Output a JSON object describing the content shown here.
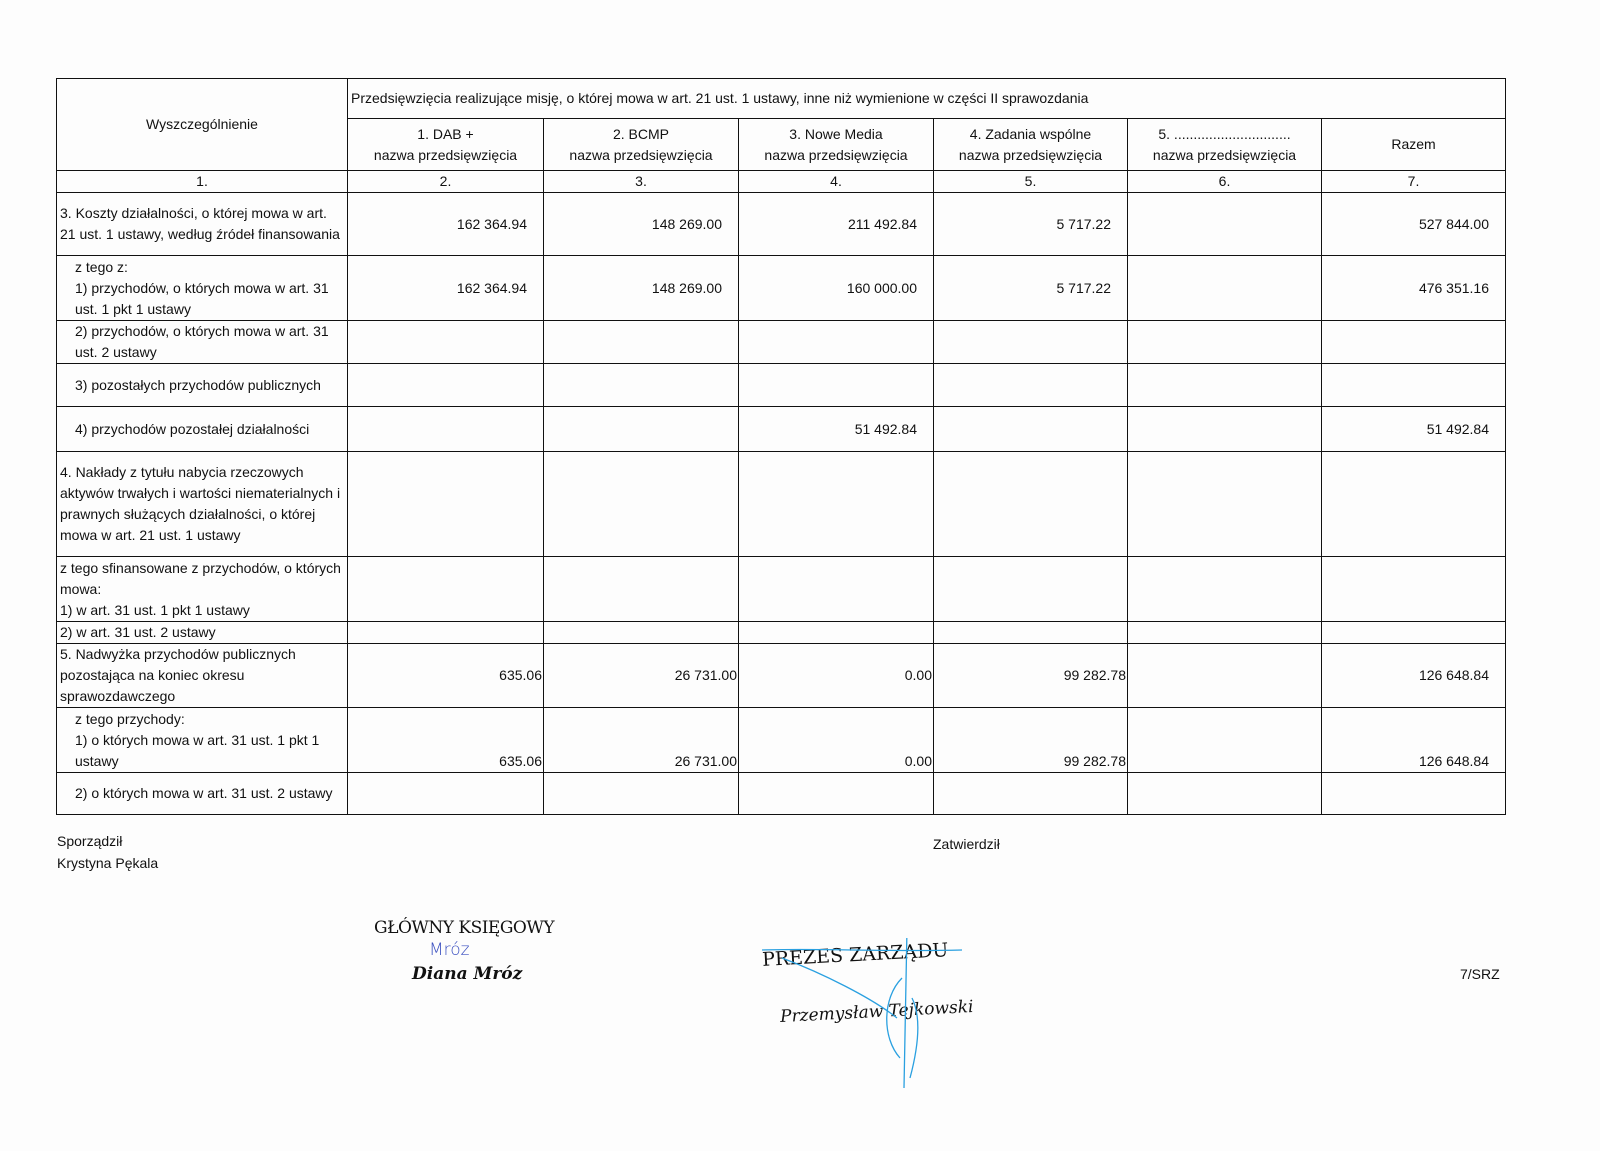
{
  "table": {
    "first_header": "Wyszczególnienie",
    "group_header": "Przedsięwzięcia realizujące misję, o której mowa w art. 21 ust. 1 ustawy, inne niż wymienione w części II sprawozdania",
    "columns": [
      {
        "title": "1. DAB +",
        "sub": "nazwa przedsięwzięcia"
      },
      {
        "title": "2. BCMP",
        "sub": "nazwa przedsięwzięcia"
      },
      {
        "title": "3. Nowe Media",
        "sub": "nazwa przedsięwzięcia"
      },
      {
        "title": "4. Zadania wspólne",
        "sub": "nazwa przedsięwzięcia"
      },
      {
        "title": "5. ..............................",
        "sub": "nazwa przedsięwzięcia"
      }
    ],
    "total_header": "Razem",
    "column_numbers": [
      "1.",
      "2.",
      "3.",
      "4.",
      "5.",
      "6.",
      "7."
    ],
    "rows": [
      {
        "label": "3. Koszty działalności, o której mowa w art. 21 ust. 1 ustawy, według źródeł finansowania",
        "values": [
          "162 364.94",
          "148 269.00",
          "211 492.84",
          "5 717.22",
          "",
          "527 844.00"
        ]
      },
      {
        "label": "z tego z:\n1) przychodów, o których mowa w art. 31 ust. 1 pkt 1 ustawy",
        "values": [
          "162 364.94",
          "148 269.00",
          "160 000.00",
          "5 717.22",
          "",
          "476 351.16"
        ]
      },
      {
        "label": "2) przychodów, o których mowa w art. 31 ust. 2 ustawy",
        "values": [
          "",
          "",
          "",
          "",
          "",
          ""
        ]
      },
      {
        "label": "3) pozostałych przychodów publicznych",
        "values": [
          "",
          "",
          "",
          "",
          "",
          ""
        ]
      },
      {
        "label": "4) przychodów pozostałej działalności",
        "values": [
          "",
          "",
          "51 492.84",
          "",
          "",
          "51 492.84"
        ]
      },
      {
        "label": "4. Nakłady z tytułu nabycia rzeczowych aktywów trwałych i wartości niematerialnych i prawnych służących działalności, o której mowa w art. 21 ust. 1 ustawy",
        "values": [
          "",
          "",
          "",
          "",
          "",
          ""
        ]
      },
      {
        "label": "z tego sfinansowane z przychodów, o których mowa:\n   1) w art. 31 ust. 1 pkt 1 ustawy",
        "values": [
          "",
          "",
          "",
          "",
          "",
          ""
        ]
      },
      {
        "label": "   2) w art. 31 ust. 2 ustawy",
        "values": [
          "",
          "",
          "",
          "",
          "",
          ""
        ]
      },
      {
        "label": "5. Nadwyżka przychodów publicznych pozostająca na koniec okresu sprawozdawczego",
        "values": [
          "635.06",
          "26 731.00",
          "0.00",
          "99 282.78",
          "",
          "126 648.84"
        ]
      },
      {
        "label": "z tego przychody:\n1) o których mowa w art. 31 ust. 1 pkt 1 ustawy",
        "values": [
          "635.06",
          "26 731.00",
          "0.00",
          "99 282.78",
          "",
          "126 648.84"
        ]
      },
      {
        "label": "2) o których mowa w art. 31 ust. 2 ustawy",
        "values": [
          "",
          "",
          "",
          "",
          "",
          ""
        ]
      }
    ]
  },
  "footer": {
    "prepared_label": "Sporządził",
    "prepared_name": "Krystyna Pękala",
    "approved_label": "Zatwierdził",
    "stamp1_title": "GŁÓWNY KSIĘGOWY",
    "stamp1_signature": "Mróz",
    "stamp1_name": "Diana Mróz",
    "stamp2_title": "PREZES ZARZĄDU",
    "stamp2_name": "Przemysław Tejkowski",
    "page_code": "7/SRZ"
  }
}
